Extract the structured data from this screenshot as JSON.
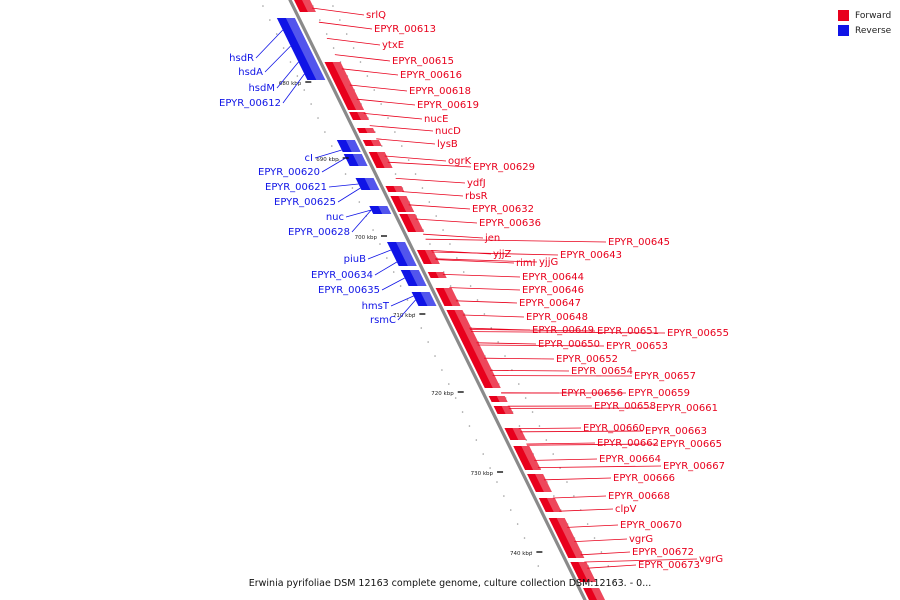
{
  "colors": {
    "forward": "#e8001c",
    "reverse": "#1014e6",
    "axis": "#8a8a8a"
  },
  "legend": [
    {
      "label": "Forward",
      "color": "#e8001c"
    },
    {
      "label": "Reverse",
      "color": "#1014e6"
    }
  ],
  "caption": "Erwinia pyrifoliae DSM 12163 complete genome, culture collection DSM:12163. - 0...",
  "ticks": [
    "680 kbp",
    "690 kbp",
    "700 kbp",
    "710 kbp",
    "720 kbp",
    "730 kbp",
    "740 kbp"
  ],
  "forward_labels": [
    "srlQ",
    "EPYR_00613",
    "ytxE",
    "EPYR_00615",
    "EPYR_00616",
    "EPYR_00618",
    "EPYR_00619",
    "nucE",
    "nucD",
    "lysB",
    "ogrK",
    "EPYR_00629",
    "ydfJ",
    "rbsR",
    "EPYR_00632",
    "EPYR_00636",
    "jen",
    "yjjZ",
    "rimI",
    "yjjG",
    "EPYR_00643",
    "EPYR_00645",
    "EPYR_00644",
    "EPYR_00646",
    "EPYR_00647",
    "EPYR_00648",
    "EPYR_00649",
    "EPYR_00651",
    "EPYR_00655",
    "EPYR_00650",
    "EPYR_00653",
    "EPYR_00652",
    "EPYR_00654",
    "EPYR_00657",
    "EPYR_00656",
    "EPYR_00659",
    "EPYR_00658",
    "EPYR_00661",
    "EPYR_00660",
    "EPYR_00663",
    "EPYR_00662",
    "EPYR_00665",
    "EPYR_00664",
    "EPYR_00667",
    "EPYR_00666",
    "EPYR_00668",
    "clpV",
    "EPYR_00670",
    "vgrG",
    "EPYR_00672",
    "vgrG",
    "EPYR_00673"
  ],
  "reverse_labels": [
    "hsdR",
    "hsdA",
    "hsdM",
    "EPYR_00612",
    "cI",
    "EPYR_00620",
    "EPYR_00621",
    "EPYR_00625",
    "nuc",
    "EPYR_00628",
    "piuB",
    "EPYR_00634",
    "EPYR_00635",
    "hmsT",
    "rsmC"
  ]
}
